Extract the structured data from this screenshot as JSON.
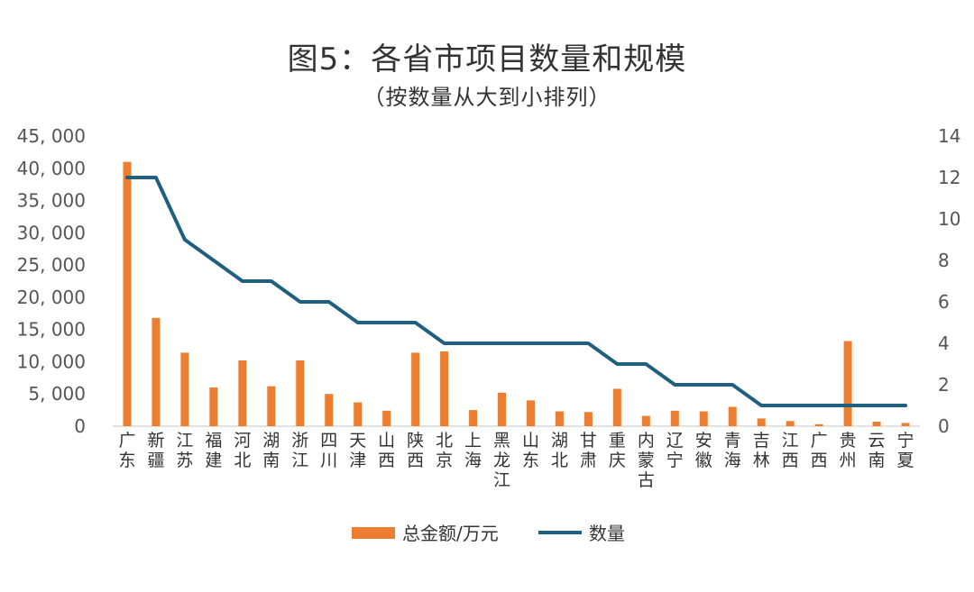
{
  "chart_data": {
    "type": "bar",
    "title": "图5：各省市项目数量和规模",
    "subtitle": "（按数量从大到小排列）",
    "categories": [
      "广东",
      "新疆",
      "江苏",
      "福建",
      "河北",
      "湖南",
      "浙江",
      "四川",
      "天津",
      "山西",
      "陕西",
      "北京",
      "上海",
      "黑龙江",
      "山东",
      "湖北",
      "甘肃",
      "重庆",
      "内蒙古",
      "辽宁",
      "安徽",
      "青海",
      "吉林",
      "江西",
      "广西",
      "贵州",
      "云南",
      "宁夏"
    ],
    "series": [
      {
        "name": "总金额/万元",
        "type": "bar",
        "axis": "left",
        "color": "#ED7D31",
        "values": [
          41000,
          16800,
          11400,
          6000,
          10200,
          6200,
          10200,
          5000,
          3700,
          2400,
          11400,
          11600,
          2500,
          5200,
          4000,
          2300,
          2200,
          5800,
          1600,
          2400,
          2300,
          3000,
          1200,
          800,
          300,
          13200,
          700,
          500
        ]
      },
      {
        "name": "数量",
        "type": "line",
        "axis": "right",
        "color": "#1F5F7F",
        "values": [
          12,
          12,
          9,
          8,
          7,
          7,
          6,
          6,
          5,
          5,
          5,
          4,
          4,
          4,
          4,
          4,
          4,
          3,
          3,
          2,
          2,
          2,
          1,
          1,
          1,
          1,
          1,
          1
        ]
      }
    ],
    "y_left": {
      "range": [
        0,
        45000
      ],
      "ticks": [
        "0",
        "5, 000",
        "10, 000",
        "15, 000",
        "20, 000",
        "25, 000",
        "30, 000",
        "35, 000",
        "40, 000",
        "45, 000"
      ]
    },
    "y_right": {
      "range": [
        0,
        14
      ],
      "ticks": [
        "0",
        "2",
        "4",
        "6",
        "8",
        "10",
        "12",
        "14"
      ]
    },
    "grid": false,
    "legend": "bottom"
  }
}
